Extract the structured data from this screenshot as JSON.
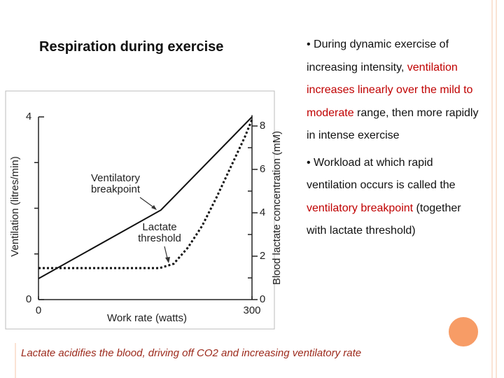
{
  "chart_data": {
    "type": "line",
    "xlabel": "Work rate (watts)",
    "ylabel": "Ventilation (litres/min)",
    "y2label": "Blood lactate concentration (mM)",
    "xlim": [
      0,
      300
    ],
    "xticks": [
      0,
      300
    ],
    "ylim": [
      0,
      4
    ],
    "yticks": [
      0,
      4
    ],
    "yminor": [
      1,
      2,
      3
    ],
    "y2lim": [
      0,
      8.5
    ],
    "y2ticks": [
      0,
      2,
      4,
      6,
      8
    ],
    "y2minor": [
      1,
      3,
      5,
      7
    ],
    "series": [
      {
        "color": "#111111",
        "style": "solid",
        "x": [
          0,
          172,
          300
        ],
        "values": [
          0.46,
          1.96,
          4.0
        ]
      },
      {
        "color": "#111111",
        "style": "dashed",
        "axis": "y2",
        "x": [
          0,
          170,
          190,
          210,
          230,
          250,
          270,
          290,
          300
        ],
        "values": [
          1.45,
          1.45,
          1.65,
          2.4,
          3.4,
          4.7,
          6.1,
          7.5,
          8.3
        ]
      }
    ],
    "annotations": [
      {
        "lines": [
          "Ventilatory",
          "breakpoint"
        ]
      },
      {
        "lines": [
          "Lactate",
          "threshold"
        ]
      }
    ]
  },
  "slide": {
    "title": "Respiration during exercise",
    "bullets": [
      {
        "segments": [
          {
            "text": "• During dynamic exercise of increasing intensity, ",
            "color": "#111111"
          },
          {
            "text": "ventilation increases linearly over the mild to moderate",
            "color": "#c00000"
          },
          {
            "text": " range, then more rapidly in intense exercise",
            "color": "#111111"
          }
        ]
      },
      {
        "segments": [
          {
            "text": "• Workload at which rapid ventilation occurs is called the ",
            "color": "#111111"
          },
          {
            "text": "ventilatory breakpoint",
            "color": "#c00000"
          },
          {
            "text": " (together with lactate threshold)",
            "color": "#111111"
          }
        ]
      }
    ],
    "caption": "Lactate acidifies the blood, driving off CO2 and increasing ventilatory rate"
  }
}
